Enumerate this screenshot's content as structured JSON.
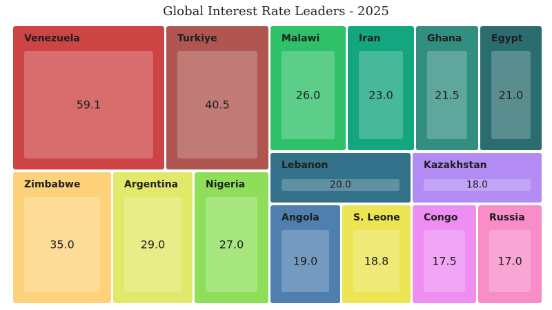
{
  "chart_data": {
    "type": "treemap",
    "title": "Global Interest Rate Leaders - 2025",
    "items": [
      {
        "label": "Venezuela",
        "value": 59.1,
        "display": "59.1",
        "color": "#cc4444"
      },
      {
        "label": "Turkiye",
        "value": 40.5,
        "display": "40.5",
        "color": "#b05650"
      },
      {
        "label": "Zimbabwe",
        "value": 35.0,
        "display": "35.0",
        "color": "#fdd27a"
      },
      {
        "label": "Argentina",
        "value": 29.0,
        "display": "29.0",
        "color": "#e2e86a"
      },
      {
        "label": "Nigeria",
        "value": 27.0,
        "display": "27.0",
        "color": "#8fde5a"
      },
      {
        "label": "Malawi",
        "value": 26.0,
        "display": "26.0",
        "color": "#2fc06a"
      },
      {
        "label": "Iran",
        "value": 23.0,
        "display": "23.0",
        "color": "#14a67e"
      },
      {
        "label": "Ghana",
        "value": 21.5,
        "display": "21.5",
        "color": "#328f80"
      },
      {
        "label": "Egypt",
        "value": 21.0,
        "display": "21.0",
        "color": "#2b6d6f"
      },
      {
        "label": "Lebanon",
        "value": 20.0,
        "display": "20.0",
        "color": "#33728a"
      },
      {
        "label": "Kazakhstan",
        "value": 18.0,
        "display": "18.0",
        "color": "#b28cf4"
      },
      {
        "label": "Angola",
        "value": 19.0,
        "display": "19.0",
        "color": "#4e7fae"
      },
      {
        "label": "S. Leone",
        "value": 18.8,
        "display": "18.8",
        "color": "#ebe453"
      },
      {
        "label": "Congo",
        "value": 17.5,
        "display": "17.5",
        "color": "#ee8ef2"
      },
      {
        "label": "Russia",
        "value": 17.0,
        "display": "17.0",
        "color": "#f98dc8"
      }
    ]
  }
}
